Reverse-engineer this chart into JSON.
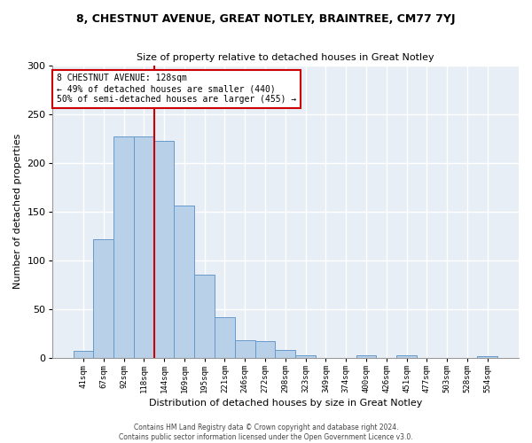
{
  "title1": "8, CHESTNUT AVENUE, GREAT NOTLEY, BRAINTREE, CM77 7YJ",
  "title2": "Size of property relative to detached houses in Great Notley",
  "xlabel": "Distribution of detached houses by size in Great Notley",
  "ylabel": "Number of detached properties",
  "footer1": "Contains HM Land Registry data © Crown copyright and database right 2024.",
  "footer2": "Contains public sector information licensed under the Open Government Licence v3.0.",
  "annotation_line1": "8 CHESTNUT AVENUE: 128sqm",
  "annotation_line2": "← 49% of detached houses are smaller (440)",
  "annotation_line3": "50% of semi-detached houses are larger (455) →",
  "bar_labels": [
    "41sqm",
    "67sqm",
    "92sqm",
    "118sqm",
    "144sqm",
    "169sqm",
    "195sqm",
    "221sqm",
    "246sqm",
    "272sqm",
    "298sqm",
    "323sqm",
    "349sqm",
    "374sqm",
    "400sqm",
    "426sqm",
    "451sqm",
    "477sqm",
    "503sqm",
    "528sqm",
    "554sqm"
  ],
  "bar_heights": [
    7,
    122,
    227,
    227,
    222,
    156,
    85,
    42,
    18,
    17,
    8,
    3,
    0,
    0,
    3,
    0,
    3,
    0,
    0,
    0,
    2
  ],
  "bar_color": "#b8d0e8",
  "bar_edge_color": "#6699cc",
  "vline_x": 3.5,
  "vline_color": "#cc0000",
  "ylim": [
    0,
    300
  ],
  "yticks": [
    0,
    50,
    100,
    150,
    200,
    250,
    300
  ],
  "bg_color": "#ffffff",
  "plot_bg_color": "#e8eef5",
  "grid_color": "#ffffff",
  "annotation_box_edge": "#cc0000",
  "annotation_box_face": "#ffffff"
}
